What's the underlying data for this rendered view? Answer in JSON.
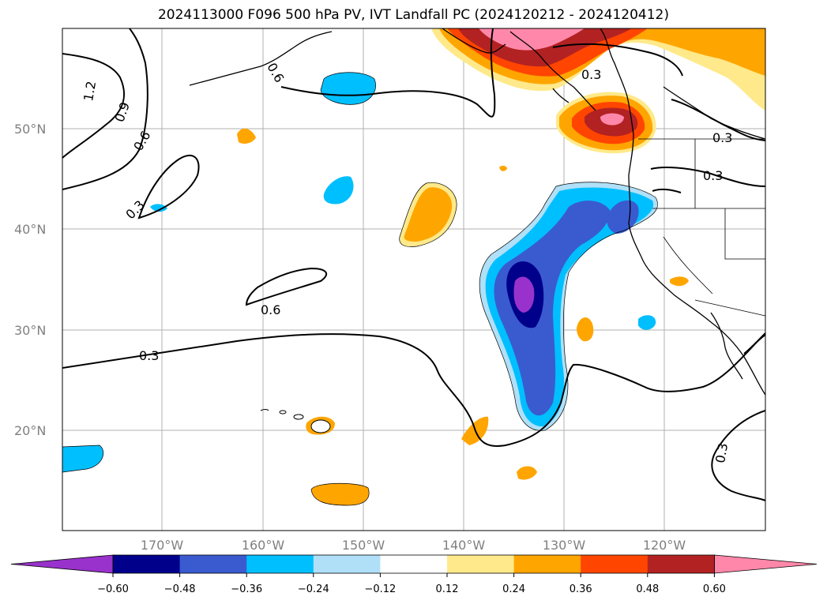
{
  "title": "2024113000 F096 500 hPa PV, IVT Landfall PC (2024120212 - 2024120412)",
  "axes": {
    "lat_labels": [
      "50°N",
      "40°N",
      "30°N",
      "20°N"
    ],
    "lon_labels": [
      "170°W",
      "160°W",
      "150°W",
      "140°W",
      "130°W",
      "120°W"
    ]
  },
  "contour_labels": [
    "1.2",
    "0.9",
    "0.6",
    "0.3",
    "0.6",
    "0.3",
    "0.3",
    "0.3",
    "0.3",
    "0.6",
    "0.3"
  ],
  "colorbar": {
    "ticks": [
      "−0.60",
      "−0.48",
      "−0.36",
      "−0.24",
      "−0.12",
      "0.12",
      "0.24",
      "0.36",
      "0.48",
      "0.60"
    ],
    "colors": [
      "#9932cc",
      "#00008b",
      "#3a5bcf",
      "#00bfff",
      "#b0e0f8",
      "#ffffff",
      "#ffe98a",
      "#ffa500",
      "#ff4500",
      "#b22222",
      "#ff88aa"
    ]
  }
}
